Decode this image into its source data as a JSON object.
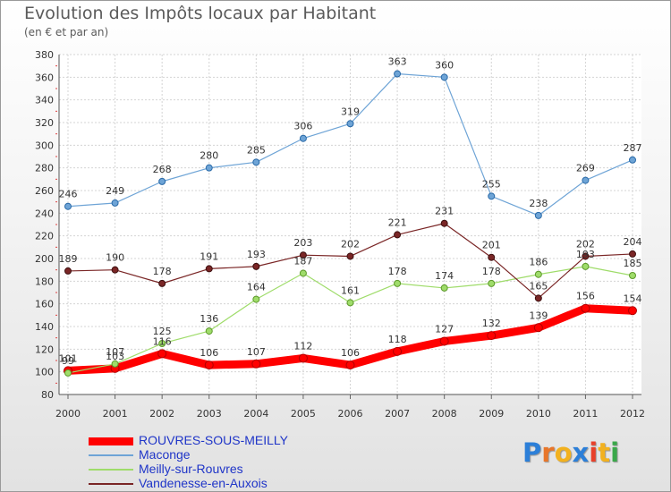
{
  "title": "Evolution des Impôts locaux par Habitant",
  "subtitle": "(en € et par an)",
  "logo": {
    "letters": [
      "P",
      "r",
      "o",
      "x",
      "i",
      "t",
      "i"
    ],
    "colors": [
      "#2c7fd8",
      "#e8762a",
      "#f2b11f",
      "#2c7fd8",
      "#e8402a",
      "#f2b11f",
      "#3aa84a"
    ]
  },
  "chart_data": {
    "type": "line",
    "title": "Evolution des Impôts locaux par Habitant",
    "subtitle": "(en € et par an)",
    "x": [
      "2000",
      "2001",
      "2002",
      "2003",
      "2004",
      "2005",
      "2006",
      "2007",
      "2008",
      "2009",
      "2010",
      "2011",
      "2012"
    ],
    "ylim": [
      80,
      380
    ],
    "yticks": [
      80,
      100,
      120,
      140,
      160,
      180,
      200,
      220,
      240,
      260,
      280,
      300,
      320,
      340,
      360,
      380
    ],
    "grid": true,
    "legend": "bottom-left",
    "series": [
      {
        "name": "ROUVRES-SOUS-MEILLY",
        "color": "#ff0000",
        "values": [
          101,
          103,
          116,
          106,
          107,
          112,
          106,
          118,
          127,
          132,
          139,
          156,
          154
        ]
      },
      {
        "name": "Maconge",
        "color": "#6ea4d6",
        "values": [
          246,
          249,
          268,
          280,
          285,
          306,
          319,
          363,
          360,
          255,
          238,
          269,
          287
        ]
      },
      {
        "name": "Meilly-sur-Rouvres",
        "color": "#9fdc6a",
        "values": [
          99,
          107,
          125,
          136,
          164,
          187,
          161,
          178,
          174,
          178,
          186,
          193,
          185
        ]
      },
      {
        "name": "Vandenesse-en-Auxois",
        "color": "#7a2626",
        "values": [
          189,
          190,
          178,
          191,
          193,
          203,
          202,
          221,
          231,
          201,
          165,
          202,
          204
        ]
      }
    ]
  }
}
